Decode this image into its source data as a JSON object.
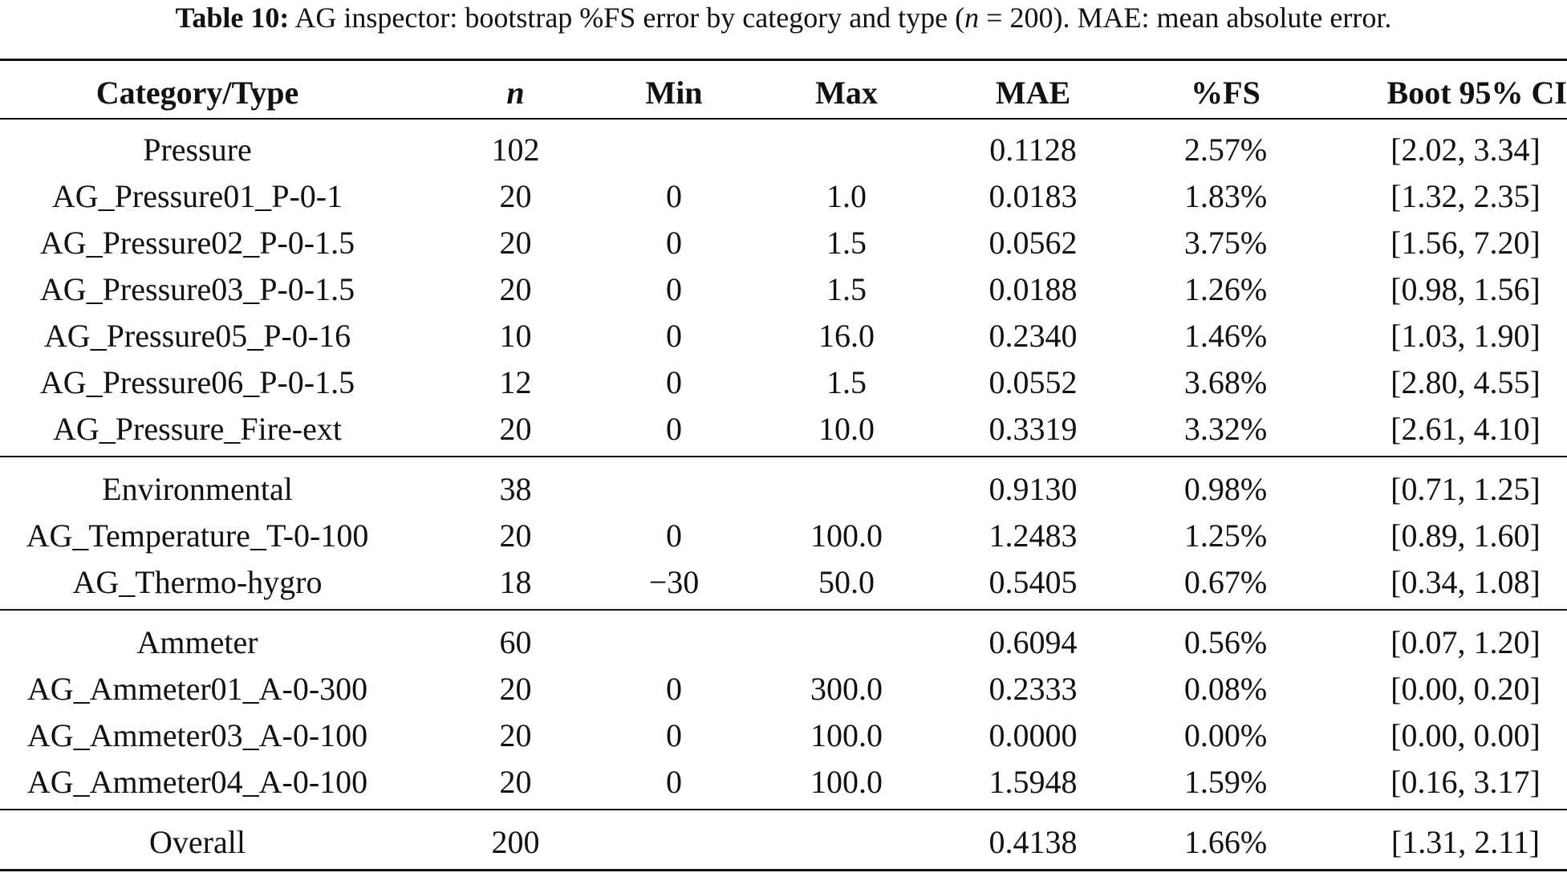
{
  "caption": {
    "label": "Table 10:",
    "text_before_n": " AG inspector: bootstrap %FS error by category and type (",
    "n_symbol": "n",
    "text_after_n": " = 200). MAE: mean absolute error."
  },
  "columns": [
    "Category/Type",
    "n",
    "Min",
    "Max",
    "MAE",
    "%FS",
    "Boot 95% CI"
  ],
  "groups": [
    {
      "rows": [
        [
          "Pressure",
          "102",
          "",
          "",
          "0.1128",
          "2.57%",
          "[2.02, 3.34]"
        ],
        [
          "AG_Pressure01_P-0-1",
          "20",
          "0",
          "1.0",
          "0.0183",
          "1.83%",
          "[1.32, 2.35]"
        ],
        [
          "AG_Pressure02_P-0-1.5",
          "20",
          "0",
          "1.5",
          "0.0562",
          "3.75%",
          "[1.56, 7.20]"
        ],
        [
          "AG_Pressure03_P-0-1.5",
          "20",
          "0",
          "1.5",
          "0.0188",
          "1.26%",
          "[0.98, 1.56]"
        ],
        [
          "AG_Pressure05_P-0-16",
          "10",
          "0",
          "16.0",
          "0.2340",
          "1.46%",
          "[1.03, 1.90]"
        ],
        [
          "AG_Pressure06_P-0-1.5",
          "12",
          "0",
          "1.5",
          "0.0552",
          "3.68%",
          "[2.80, 4.55]"
        ],
        [
          "AG_Pressure_Fire-ext",
          "20",
          "0",
          "10.0",
          "0.3319",
          "3.32%",
          "[2.61, 4.10]"
        ]
      ]
    },
    {
      "rows": [
        [
          "Environmental",
          "38",
          "",
          "",
          "0.9130",
          "0.98%",
          "[0.71, 1.25]"
        ],
        [
          "AG_Temperature_T-0-100",
          "20",
          "0",
          "100.0",
          "1.2483",
          "1.25%",
          "[0.89, 1.60]"
        ],
        [
          "AG_Thermo-hygro",
          "18",
          "−30",
          "50.0",
          "0.5405",
          "0.67%",
          "[0.34, 1.08]"
        ]
      ]
    },
    {
      "rows": [
        [
          "Ammeter",
          "60",
          "",
          "",
          "0.6094",
          "0.56%",
          "[0.07, 1.20]"
        ],
        [
          "AG_Ammeter01_A-0-300",
          "20",
          "0",
          "300.0",
          "0.2333",
          "0.08%",
          "[0.00, 0.20]"
        ],
        [
          "AG_Ammeter03_A-0-100",
          "20",
          "0",
          "100.0",
          "0.0000",
          "0.00%",
          "[0.00, 0.00]"
        ],
        [
          "AG_Ammeter04_A-0-100",
          "20",
          "0",
          "100.0",
          "1.5948",
          "1.59%",
          "[0.16, 3.17]"
        ]
      ]
    },
    {
      "rows": [
        [
          "Overall",
          "200",
          "",
          "",
          "0.4138",
          "1.66%",
          "[1.31, 2.11]"
        ]
      ]
    }
  ]
}
